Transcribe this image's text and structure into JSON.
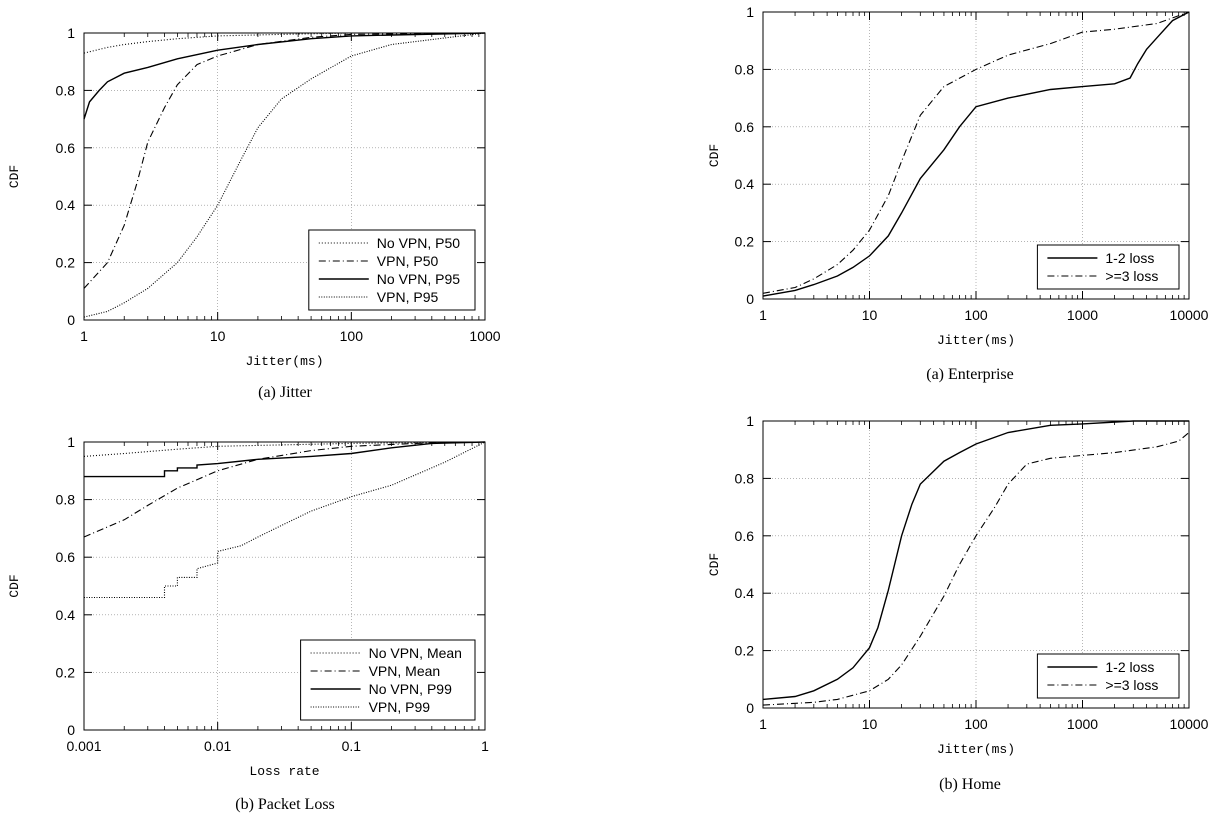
{
  "charts": [
    {
      "caption": "(a)  Jitter",
      "chart_data": {
        "type": "line",
        "xlabel": "Jitter(ms)",
        "ylabel": "CDF",
        "xscale": "log",
        "xlim": [
          1,
          1000
        ],
        "ylim": [
          0,
          1
        ],
        "xticks": [
          1,
          10,
          100,
          1000
        ],
        "xtick_labels": [
          "1",
          "10",
          "100",
          "1000"
        ],
        "yticks": [
          0,
          0.2,
          0.4,
          0.6,
          0.8,
          1
        ],
        "ytick_labels": [
          "0",
          "0.2",
          "0.4",
          "0.6",
          "0.8",
          "1"
        ],
        "grid": true,
        "legend_position": "bottom-right",
        "series": [
          {
            "name": "No VPN, P50",
            "dash": "1,2",
            "x": [
              1,
              1.5,
              2,
              3,
              5,
              10,
              30,
              100,
              1000
            ],
            "y": [
              0.93,
              0.95,
              0.96,
              0.97,
              0.98,
              0.99,
              0.995,
              1,
              1
            ]
          },
          {
            "name": "VPN, P50",
            "dash": "7,3,1,3",
            "x": [
              1,
              1.5,
              2,
              2.5,
              3,
              4,
              5,
              7,
              10,
              20,
              50,
              100,
              1000
            ],
            "y": [
              0.11,
              0.2,
              0.33,
              0.48,
              0.62,
              0.74,
              0.82,
              0.89,
              0.92,
              0.96,
              0.985,
              0.995,
              1
            ]
          },
          {
            "name": "No VPN, P95",
            "dash": "",
            "x": [
              1,
              1.1,
              1.3,
              1.5,
              2,
              3,
              5,
              10,
              20,
              50,
              100,
              1000
            ],
            "y": [
              0.7,
              0.76,
              0.8,
              0.83,
              0.86,
              0.88,
              0.91,
              0.94,
              0.96,
              0.98,
              0.99,
              1
            ]
          },
          {
            "name": "VPN, P95",
            "dash": "1,1.5",
            "x": [
              1,
              1.5,
              2,
              3,
              5,
              7,
              10,
              15,
              20,
              30,
              50,
              100,
              200,
              1000
            ],
            "y": [
              0.01,
              0.03,
              0.06,
              0.11,
              0.2,
              0.29,
              0.4,
              0.56,
              0.67,
              0.77,
              0.84,
              0.92,
              0.96,
              1
            ]
          }
        ]
      }
    },
    {
      "caption": "(b)  Packet Loss",
      "chart_data": {
        "type": "line",
        "xlabel": "Loss rate",
        "ylabel": "CDF",
        "xscale": "log",
        "xlim": [
          0.001,
          1
        ],
        "ylim": [
          0,
          1
        ],
        "xticks": [
          0.001,
          0.01,
          0.1,
          1
        ],
        "xtick_labels": [
          "0.001",
          "0.01",
          "0.1",
          "1"
        ],
        "yticks": [
          0,
          0.2,
          0.4,
          0.6,
          0.8,
          1
        ],
        "ytick_labels": [
          "0",
          "0.2",
          "0.4",
          "0.6",
          "0.8",
          "1"
        ],
        "grid": true,
        "legend_position": "bottom-right",
        "series": [
          {
            "name": "No VPN, Mean",
            "dash": "1,2",
            "x": [
              0.001,
              0.002,
              0.005,
              0.01,
              0.03,
              0.1,
              1
            ],
            "y": [
              0.95,
              0.96,
              0.975,
              0.985,
              0.99,
              0.995,
              1
            ]
          },
          {
            "name": "VPN, Mean",
            "dash": "7,3,1,3",
            "x": [
              0.001,
              0.002,
              0.003,
              0.005,
              0.01,
              0.02,
              0.05,
              0.1,
              0.3,
              1
            ],
            "y": [
              0.67,
              0.73,
              0.78,
              0.84,
              0.9,
              0.94,
              0.97,
              0.985,
              0.995,
              1
            ]
          },
          {
            "name": "No VPN, P99",
            "dash": "",
            "x": [
              0.001,
              0.004,
              0.004,
              0.005,
              0.005,
              0.007,
              0.007,
              0.01,
              0.02,
              0.05,
              0.1,
              0.2,
              0.4,
              1
            ],
            "y": [
              0.88,
              0.88,
              0.9,
              0.9,
              0.91,
              0.91,
              0.92,
              0.925,
              0.94,
              0.95,
              0.96,
              0.98,
              0.995,
              1
            ]
          },
          {
            "name": "VPN, P99",
            "dash": "1,1.5",
            "x": [
              0.001,
              0.004,
              0.004,
              0.005,
              0.005,
              0.007,
              0.007,
              0.01,
              0.01,
              0.015,
              0.02,
              0.03,
              0.05,
              0.1,
              0.2,
              0.5,
              1
            ],
            "y": [
              0.46,
              0.46,
              0.5,
              0.5,
              0.53,
              0.53,
              0.56,
              0.58,
              0.62,
              0.64,
              0.67,
              0.71,
              0.76,
              0.81,
              0.85,
              0.93,
              1
            ]
          }
        ]
      }
    },
    {
      "caption": "(a)  Enterprise",
      "chart_data": {
        "type": "line",
        "xlabel": "Jitter(ms)",
        "ylabel": "CDF",
        "xscale": "log",
        "xlim": [
          1,
          10000
        ],
        "ylim": [
          0,
          1
        ],
        "xticks": [
          1,
          10,
          100,
          1000,
          10000
        ],
        "xtick_labels": [
          "1",
          "10",
          "100",
          "1000",
          "10000"
        ],
        "yticks": [
          0,
          0.2,
          0.4,
          0.6,
          0.8,
          1
        ],
        "ytick_labels": [
          "0",
          "0.2",
          "0.4",
          "0.6",
          "0.8",
          "1"
        ],
        "grid": true,
        "legend_position": "bottom-right",
        "series": [
          {
            "name": "1-2 loss",
            "dash": "",
            "x": [
              1,
              2,
              3,
              5,
              7,
              10,
              15,
              20,
              30,
              50,
              70,
              100,
              200,
              500,
              1000,
              2000,
              2800,
              3300,
              4000,
              5000,
              7000,
              10000
            ],
            "y": [
              0.01,
              0.03,
              0.05,
              0.08,
              0.11,
              0.15,
              0.22,
              0.3,
              0.42,
              0.52,
              0.6,
              0.67,
              0.7,
              0.73,
              0.74,
              0.75,
              0.77,
              0.82,
              0.87,
              0.91,
              0.97,
              1
            ]
          },
          {
            "name": ">=3 loss",
            "dash": "7,3,1,3",
            "x": [
              1,
              2,
              3,
              5,
              7,
              10,
              15,
              20,
              30,
              50,
              100,
              200,
              500,
              1000,
              2000,
              5000,
              10000
            ],
            "y": [
              0.02,
              0.04,
              0.07,
              0.12,
              0.17,
              0.24,
              0.36,
              0.48,
              0.64,
              0.74,
              0.8,
              0.85,
              0.89,
              0.93,
              0.94,
              0.96,
              1
            ]
          }
        ]
      }
    },
    {
      "caption": "(b)  Home",
      "chart_data": {
        "type": "line",
        "xlabel": "Jitter(ms)",
        "ylabel": "CDF",
        "xscale": "log",
        "xlim": [
          1,
          10000
        ],
        "ylim": [
          0,
          1
        ],
        "xticks": [
          1,
          10,
          100,
          1000,
          10000
        ],
        "xtick_labels": [
          "1",
          "10",
          "100",
          "1000",
          "10000"
        ],
        "yticks": [
          0,
          0.2,
          0.4,
          0.6,
          0.8,
          1
        ],
        "ytick_labels": [
          "0",
          "0.2",
          "0.4",
          "0.6",
          "0.8",
          "1"
        ],
        "grid": true,
        "legend_position": "bottom-right",
        "series": [
          {
            "name": "1-2 loss",
            "dash": "",
            "x": [
              1,
              2,
              3,
              5,
              7,
              10,
              12,
              15,
              20,
              25,
              30,
              50,
              70,
              100,
              200,
              500,
              1000,
              3000,
              10000
            ],
            "y": [
              0.03,
              0.04,
              0.06,
              0.1,
              0.14,
              0.21,
              0.28,
              0.41,
              0.6,
              0.71,
              0.78,
              0.86,
              0.89,
              0.92,
              0.96,
              0.985,
              0.99,
              1,
              1
            ]
          },
          {
            "name": ">=3 loss",
            "dash": "7,3,1,3",
            "x": [
              1,
              3,
              5,
              10,
              15,
              20,
              30,
              50,
              70,
              100,
              150,
              200,
              300,
              500,
              1000,
              2000,
              5000,
              8000,
              10000
            ],
            "y": [
              0.01,
              0.02,
              0.03,
              0.06,
              0.1,
              0.15,
              0.25,
              0.39,
              0.5,
              0.6,
              0.7,
              0.78,
              0.85,
              0.87,
              0.88,
              0.89,
              0.91,
              0.93,
              0.96
            ]
          }
        ]
      }
    }
  ]
}
